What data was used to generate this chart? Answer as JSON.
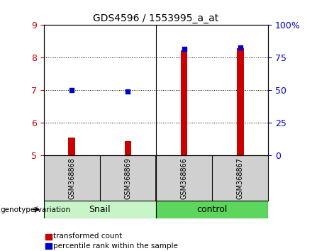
{
  "title": "GDS4596 / 1553995_a_at",
  "samples": [
    "GSM368868",
    "GSM368869",
    "GSM368866",
    "GSM368867"
  ],
  "transformed_counts": [
    5.55,
    5.44,
    8.22,
    8.3
  ],
  "percentile_ranks": [
    50,
    49,
    82,
    83
  ],
  "groups": [
    "Snail",
    "Snail",
    "control",
    "control"
  ],
  "group_labels": [
    "Snail",
    "control"
  ],
  "snail_color": "#C8F5C8",
  "control_color": "#5CD65C",
  "bar_color": "#CC0000",
  "dot_color": "#0000CC",
  "ylim_left": [
    5,
    9
  ],
  "ylim_right": [
    0,
    100
  ],
  "yticks_left": [
    5,
    6,
    7,
    8,
    9
  ],
  "yticks_right": [
    0,
    25,
    50,
    75,
    100
  ],
  "ytick_labels_right": [
    "0",
    "25",
    "50",
    "75",
    "100%"
  ],
  "bg_color": "#ffffff",
  "grid_color": "#000000",
  "label_transformed": "transformed count",
  "label_percentile": "percentile rank within the sample",
  "genotype_label": "genotype/variation",
  "bar_bottom": 5.0,
  "bar_width": 0.12
}
